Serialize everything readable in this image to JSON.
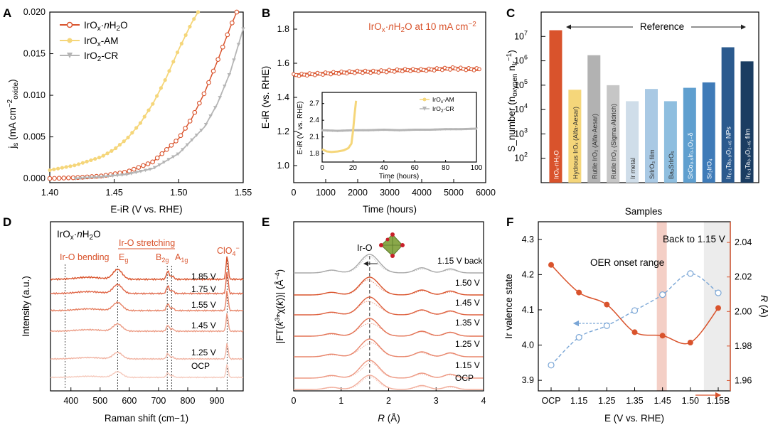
{
  "colors": {
    "red": "#d9532c",
    "yellow": "#f5d67a",
    "gray": "#b5b5b5",
    "blueDash": "#7aa6d6"
  },
  "panels": {
    "A": "A",
    "B": "B",
    "C": "C",
    "D": "D",
    "E": "E",
    "F": "F"
  },
  "chart_data": [
    {
      "id": "A",
      "type": "line",
      "xlabel": "E-iR (V vs. RHE)",
      "ylabel": "j_s (mA cm^-2 oxide)",
      "xlim": [
        1.4,
        1.55
      ],
      "ylim": [
        -0.0005,
        0.02
      ],
      "xticks": [
        "1.40",
        "1.45",
        "1.50",
        "1.55"
      ],
      "yticks": [
        "0.000",
        "0.005",
        "0.010",
        "0.015",
        "0.020"
      ],
      "legend": [
        "IrOx·nH2O",
        "IrOx-AM",
        "IrO2-CR"
      ],
      "series": [
        {
          "name": "IrOx·nH2O",
          "x": [
            1.4,
            1.42,
            1.44,
            1.46,
            1.48,
            1.5,
            1.51,
            1.52,
            1.53,
            1.54,
            1.545
          ],
          "y": [
            0.0,
            0.0001,
            0.0003,
            0.0008,
            0.002,
            0.0048,
            0.0072,
            0.0103,
            0.0141,
            0.0182,
            0.02
          ]
        },
        {
          "name": "IrOx-AM",
          "x": [
            1.4,
            1.42,
            1.44,
            1.45,
            1.46,
            1.47,
            1.48,
            1.49,
            1.5,
            1.51,
            1.515
          ],
          "y": [
            0.001,
            0.0016,
            0.0026,
            0.0035,
            0.0048,
            0.0066,
            0.009,
            0.012,
            0.0155,
            0.0187,
            0.02
          ]
        },
        {
          "name": "IrO2-CR",
          "x": [
            1.42,
            1.44,
            1.46,
            1.48,
            1.5,
            1.52,
            1.53,
            1.54,
            1.55
          ],
          "y": [
            0.0,
            0.0002,
            0.0005,
            0.0012,
            0.003,
            0.0062,
            0.009,
            0.0128,
            0.018
          ]
        }
      ]
    },
    {
      "id": "B",
      "type": "line",
      "title": "IrOx·nH2O at 10 mA cm^-2",
      "xlabel": "Time (hours)",
      "ylabel": "E-iR (vs. RHE)",
      "xlim": [
        0,
        6000
      ],
      "ylim": [
        0.9,
        1.9
      ],
      "xticks": [
        "0",
        "1000",
        "2000",
        "3000",
        "4000",
        "5000",
        "6000"
      ],
      "yticks": [
        "1.0",
        "1.2",
        "1.4",
        "1.6",
        "1.8"
      ],
      "series": [
        {
          "name": "IrOx·nH2O",
          "x": [
            0,
            500,
            1000,
            1500,
            2000,
            2500,
            3000,
            3500,
            4000,
            4500,
            5000,
            5500,
            5800
          ],
          "y": [
            1.53,
            1.535,
            1.54,
            1.545,
            1.55,
            1.55,
            1.555,
            1.56,
            1.56,
            1.565,
            1.57,
            1.565,
            1.565
          ]
        }
      ],
      "inset": {
        "xlabel": "Time (hours)",
        "ylabel": "E-iR (V vs. RHE)",
        "xlim": [
          0,
          100
        ],
        "ylim": [
          1.65,
          2.9
        ],
        "xticks": [
          "0",
          "20",
          "40",
          "60",
          "80",
          "100"
        ],
        "yticks": [
          "1.8",
          "2.1",
          "2.4",
          "2.7"
        ],
        "legend": [
          "IrOx-AM",
          "IrO2-CR"
        ],
        "series": [
          {
            "name": "IrOx-AM",
            "x": [
              0,
              3,
              6,
              10,
              14,
              17,
              19,
              20,
              21,
              22
            ],
            "y": [
              1.88,
              1.84,
              1.83,
              1.84,
              1.86,
              1.9,
              1.98,
              2.2,
              2.5,
              2.75
            ]
          },
          {
            "name": "IrO2-CR",
            "x": [
              0,
              10,
              20,
              30,
              40,
              50,
              60,
              70,
              80,
              90,
              100
            ],
            "y": [
              2.22,
              2.21,
              2.22,
              2.22,
              2.23,
              2.22,
              2.23,
              2.23,
              2.24,
              2.24,
              2.25
            ]
          }
        ]
      }
    },
    {
      "id": "C",
      "type": "bar",
      "ylabel": "S_number (n_oxygen n_Ir^-1)",
      "yscale": "log",
      "ylim": [
        10,
        100000000
      ],
      "yticks": [
        "10^2",
        "10^3",
        "10^4",
        "10^5",
        "10^6",
        "10^7"
      ],
      "annotation": "Reference",
      "categories": [
        "IrOx·nH2O",
        "Hydrous IrOx (Alfa-Aesar)",
        "Rutile IrO2 (Alfa-Aesar)",
        "Rutile IrO2 (Sigma-Aldrich)",
        "Ir metal",
        "SrIrO3 film",
        "Ba2SrIrO6",
        "SrCo0.9Ir0.1O3-δ",
        "Sr2IrO4",
        "Ir0.1Ta0.9O2.45 NPs",
        "Ir0.1Ta0.9O2.45 film"
      ],
      "values": [
        18000000,
        65000,
        1700000,
        100000,
        22000,
        70000,
        22000,
        78000,
        130000,
        3600000,
        950000
      ],
      "bar_colors": [
        "#d9532c",
        "#f5d67a",
        "#b2b2b2",
        "#c6c6c6",
        "#cfdde9",
        "#a9c9e4",
        "#8ebedf",
        "#5f9fcf",
        "#3f7bb8",
        "#2b5a8e",
        "#1b3d62"
      ]
    },
    {
      "id": "D",
      "type": "line",
      "title": "IrOx·nH2O",
      "xlabel": "Raman shift (cm−1)",
      "ylabel": "Intensity (a.u.)",
      "xlim": [
        330,
        990
      ],
      "xticks": [
        "400",
        "500",
        "600",
        "700",
        "800",
        "900"
      ],
      "annotations": [
        "Ir-O bending",
        "Ir-O stretching",
        "Eg",
        "B2g",
        "A1g",
        "ClO4−"
      ],
      "peaks_cm1": {
        "Ir-O bending": 380,
        "Eg": 560,
        "B2g": 730,
        "A1g": 745,
        "ClO4−": 935
      },
      "series_labels": [
        "1.85 V",
        "1.75 V",
        "1.55 V",
        "1.45 V",
        "1.25 V",
        "OCP"
      ]
    },
    {
      "id": "E",
      "type": "line",
      "xlabel": "R (Å)",
      "ylabel": "|FT(k^3*χ(k))| (Å^-4)",
      "xlim": [
        0,
        4
      ],
      "xticks": [
        "0",
        "1",
        "2",
        "3",
        "4"
      ],
      "annotation": "Ir-O",
      "peak_R_angstrom": 1.6,
      "series_labels": [
        "1.15 V back",
        "1.50 V",
        "1.45 V",
        "1.35 V",
        "1.25 V",
        "1.15 V",
        "OCP"
      ]
    },
    {
      "id": "F",
      "type": "line",
      "title": "Samples",
      "xlabel": "E (V vs. RHE)",
      "ylabel": "Ir valence state",
      "y2label": "R (Å)",
      "categories": [
        "OCP",
        "1.15",
        "1.25",
        "1.35",
        "1.45",
        "1.50",
        "1.15B"
      ],
      "ylim": [
        3.87,
        4.35
      ],
      "y2lim": [
        1.954,
        2.052
      ],
      "yticks": [
        "3.9",
        "4.0",
        "4.1",
        "4.2",
        "4.3"
      ],
      "y2ticks": [
        "1.96",
        "1.98",
        "2.00",
        "2.02",
        "2.04"
      ],
      "annotations": [
        "OER onset range",
        "Back to 1.15 V"
      ],
      "series": [
        {
          "name": "Ir valence state",
          "axis": "left",
          "values": [
            3.943,
            4.022,
            4.055,
            4.098,
            4.143,
            4.203,
            4.148
          ]
        },
        {
          "name": "R",
          "axis": "right",
          "values": [
            2.027,
            2.011,
            2.004,
            1.988,
            1.986,
            1.982,
            2.002
          ]
        }
      ]
    }
  ]
}
